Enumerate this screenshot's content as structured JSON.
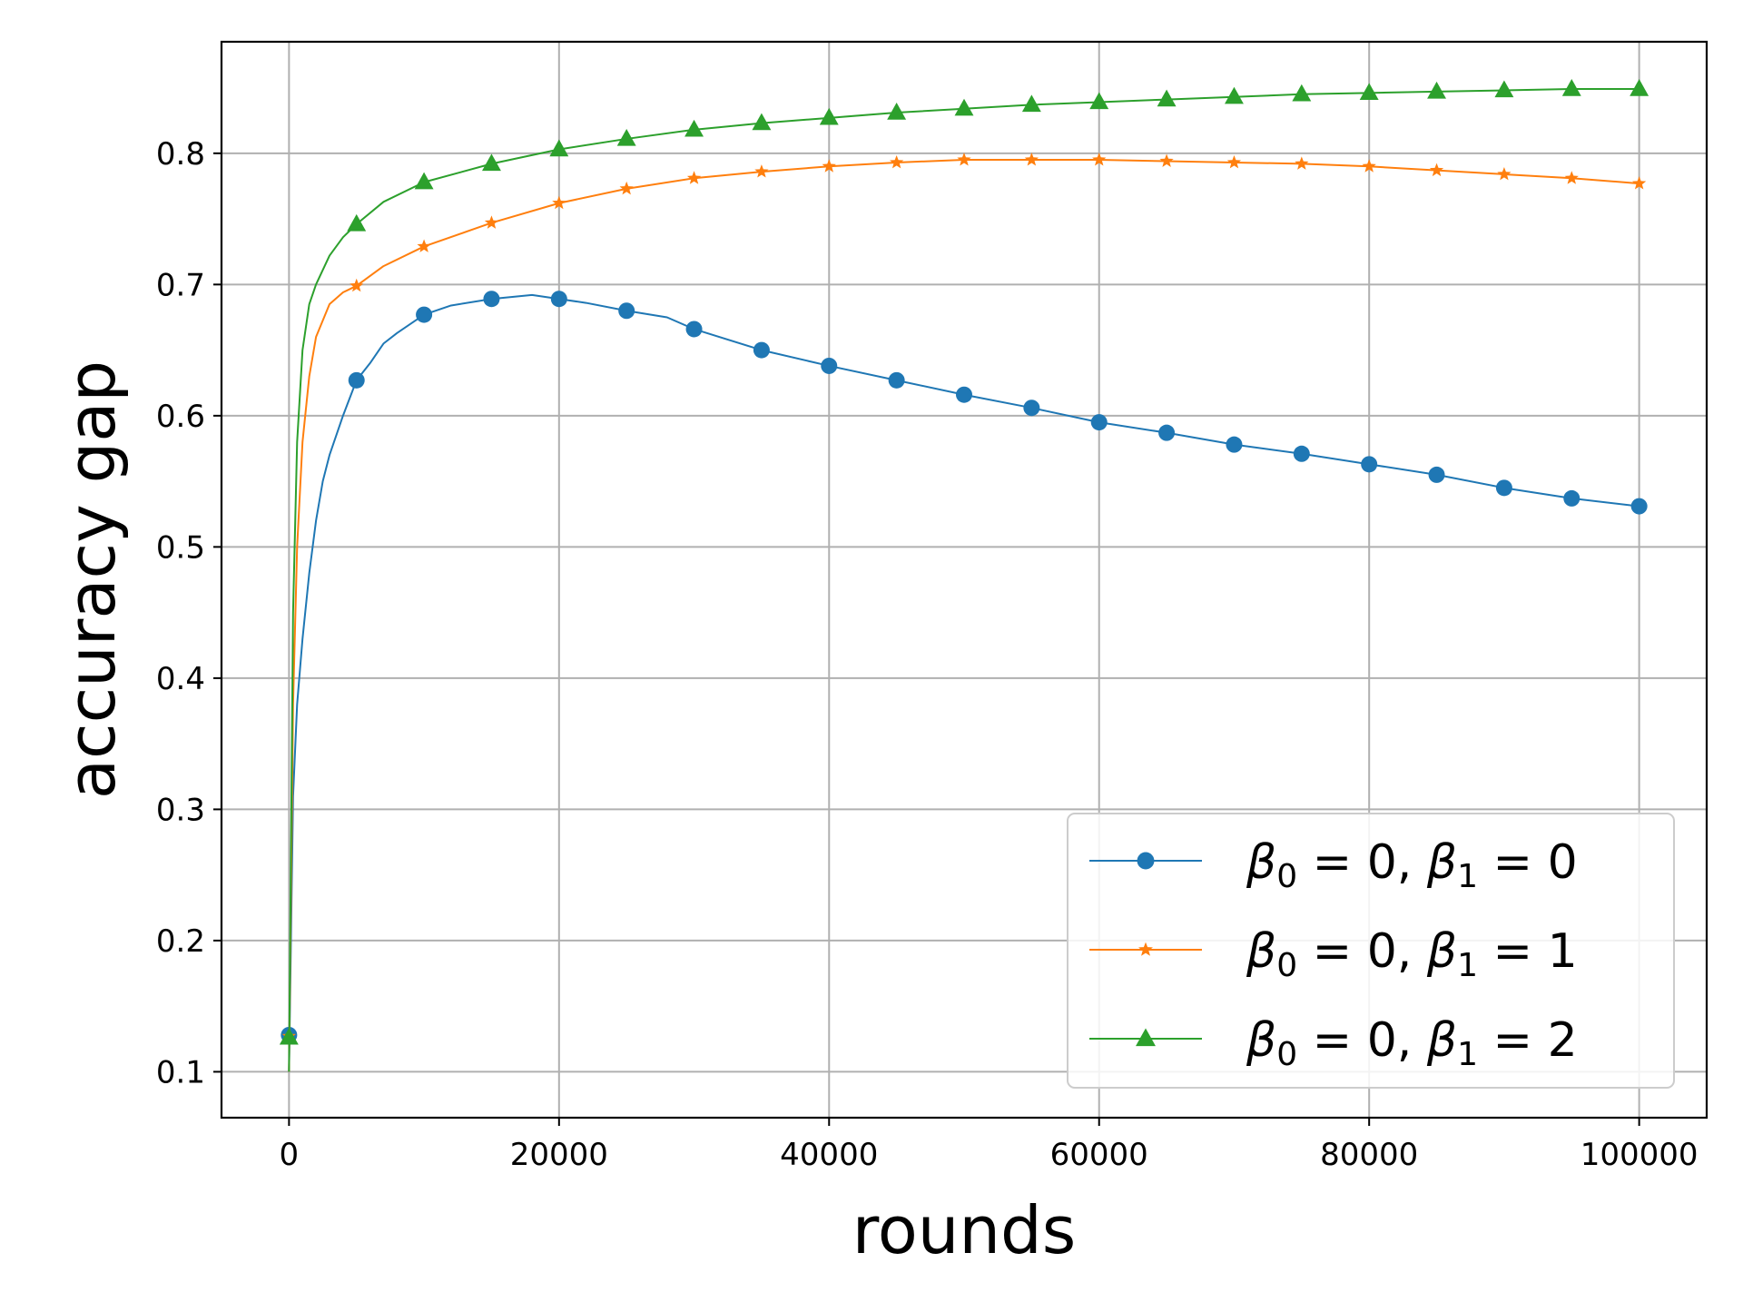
{
  "chart_data": {
    "type": "line",
    "xlabel": "rounds",
    "ylabel": "accuracy gap",
    "xlim": [
      -5000,
      105000
    ],
    "ylim": [
      0.065,
      0.885
    ],
    "grid": true,
    "legend_position": "lower-right",
    "x_ticks": [
      0,
      20000,
      40000,
      60000,
      80000,
      100000
    ],
    "x_tick_labels": [
      "0",
      "20000",
      "40000",
      "60000",
      "80000",
      "100000"
    ],
    "y_ticks": [
      0.1,
      0.2,
      0.3,
      0.4,
      0.5,
      0.6,
      0.7,
      0.8
    ],
    "y_tick_labels": [
      "0.1",
      "0.2",
      "0.3",
      "0.4",
      "0.5",
      "0.6",
      "0.7",
      "0.8"
    ],
    "series": [
      {
        "name": "β0 = 0, β1 = 0",
        "legend": {
          "beta": "β",
          "sub0": "0",
          "mid": " = 0, ",
          "sub1": "1",
          "tail": " = 0"
        },
        "color": "#1f77b4",
        "marker": "circle",
        "x": [
          0,
          5000,
          10000,
          15000,
          20000,
          25000,
          30000,
          35000,
          40000,
          45000,
          50000,
          55000,
          60000,
          65000,
          70000,
          75000,
          80000,
          85000,
          90000,
          95000,
          100000
        ],
        "y": [
          0.128,
          0.627,
          0.677,
          0.689,
          0.689,
          0.68,
          0.666,
          0.65,
          0.638,
          0.627,
          0.616,
          0.606,
          0.595,
          0.587,
          0.578,
          0.571,
          0.563,
          0.555,
          0.545,
          0.537,
          0.531
        ],
        "curve_x": [
          0,
          300,
          600,
          1000,
          1500,
          2000,
          2500,
          3000,
          4000,
          5000,
          6000,
          7000,
          8000,
          9000,
          10000,
          12000,
          15000,
          18000,
          20000,
          22000,
          25000,
          28000,
          30000
        ],
        "curve_y": [
          0.1,
          0.31,
          0.38,
          0.43,
          0.48,
          0.52,
          0.55,
          0.57,
          0.6,
          0.627,
          0.64,
          0.655,
          0.663,
          0.67,
          0.677,
          0.684,
          0.689,
          0.692,
          0.689,
          0.686,
          0.68,
          0.675,
          0.666
        ]
      },
      {
        "name": "β0 = 0, β1 = 1",
        "legend": {
          "beta": "β",
          "sub0": "0",
          "mid": " = 0, ",
          "sub1": "1",
          "tail": " = 1"
        },
        "color": "#ff7f0e",
        "marker": "star",
        "x": [
          0,
          5000,
          10000,
          15000,
          20000,
          25000,
          30000,
          35000,
          40000,
          45000,
          50000,
          55000,
          60000,
          65000,
          70000,
          75000,
          80000,
          85000,
          90000,
          95000,
          100000
        ],
        "y": [
          0.127,
          0.699,
          0.729,
          0.747,
          0.762,
          0.773,
          0.781,
          0.786,
          0.79,
          0.793,
          0.795,
          0.795,
          0.795,
          0.794,
          0.793,
          0.792,
          0.79,
          0.787,
          0.784,
          0.781,
          0.777
        ],
        "curve_x": [
          0,
          300,
          600,
          1000,
          1500,
          2000,
          3000,
          4000,
          5000,
          7000,
          10000
        ],
        "curve_y": [
          0.1,
          0.38,
          0.5,
          0.58,
          0.63,
          0.66,
          0.685,
          0.694,
          0.699,
          0.714,
          0.729
        ]
      },
      {
        "name": "β0 = 0, β1 = 2",
        "legend": {
          "beta": "β",
          "sub0": "0",
          "mid": " = 0, ",
          "sub1": "1",
          "tail": " = 2"
        },
        "color": "#2ca02c",
        "marker": "triangle",
        "x": [
          0,
          5000,
          10000,
          15000,
          20000,
          25000,
          30000,
          35000,
          40000,
          45000,
          50000,
          55000,
          60000,
          65000,
          70000,
          75000,
          80000,
          85000,
          90000,
          95000,
          100000
        ],
        "y": [
          0.126,
          0.746,
          0.778,
          0.792,
          0.803,
          0.811,
          0.818,
          0.823,
          0.827,
          0.831,
          0.834,
          0.837,
          0.839,
          0.841,
          0.843,
          0.845,
          0.846,
          0.847,
          0.848,
          0.849,
          0.849
        ],
        "curve_x": [
          0,
          300,
          600,
          1000,
          1500,
          2000,
          3000,
          4000,
          5000,
          7000,
          10000
        ],
        "curve_y": [
          0.1,
          0.45,
          0.58,
          0.65,
          0.685,
          0.7,
          0.722,
          0.736,
          0.746,
          0.763,
          0.778
        ]
      }
    ]
  }
}
